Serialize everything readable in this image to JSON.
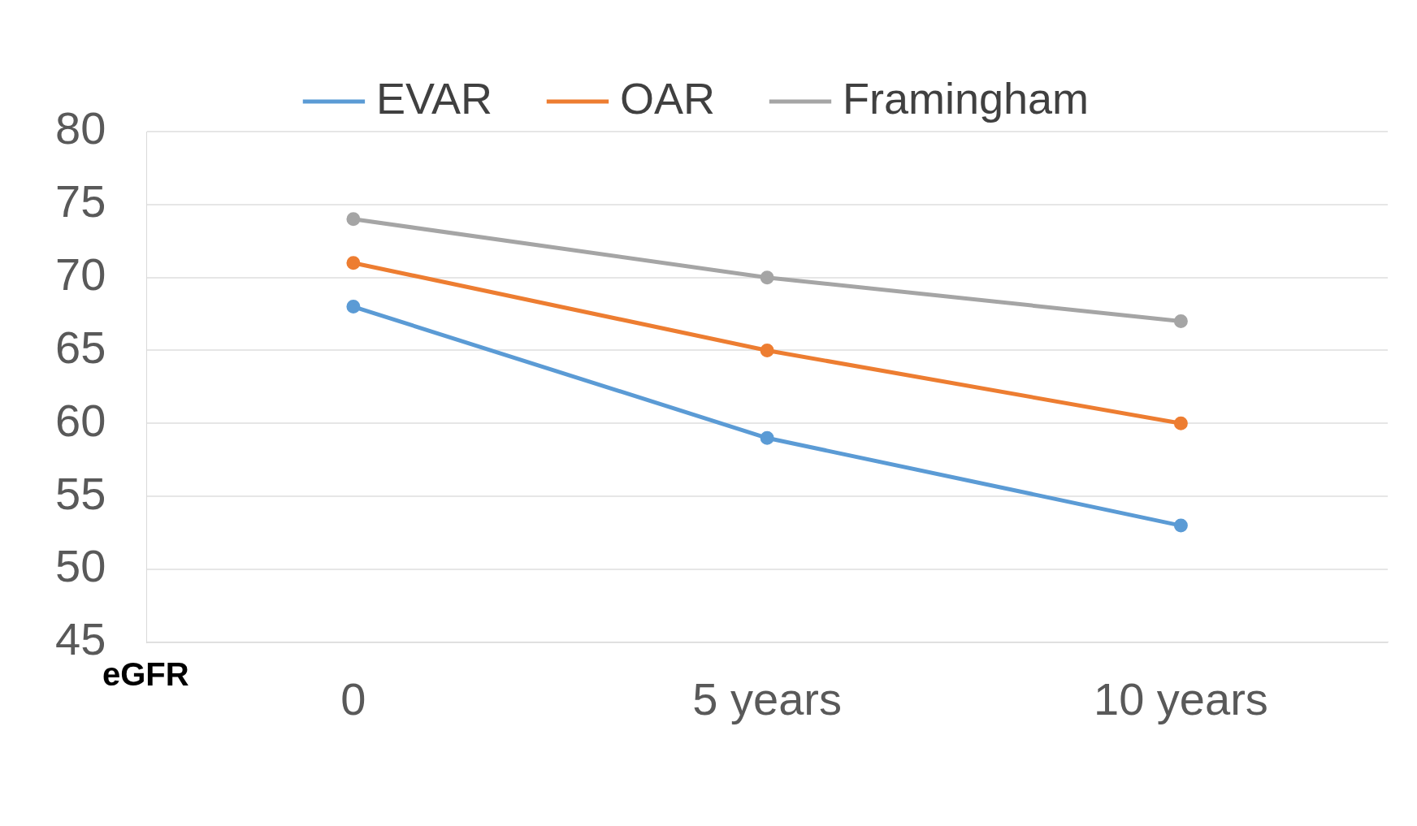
{
  "chart_data": {
    "type": "line",
    "ylabel": "eGFR",
    "categories": [
      "0",
      "5 years",
      "10 years"
    ],
    "series": [
      {
        "name": "EVAR",
        "color": "#5b9bd5",
        "values": [
          68,
          59,
          53
        ]
      },
      {
        "name": "OAR",
        "color": "#ed7d31",
        "values": [
          71,
          65,
          60
        ]
      },
      {
        "name": "Framingham",
        "color": "#a5a5a5",
        "values": [
          74,
          70,
          67
        ]
      }
    ],
    "ylim": [
      45,
      80
    ],
    "yticks": [
      45,
      50,
      55,
      60,
      65,
      70,
      75,
      80
    ],
    "grid": "y",
    "legend": "top",
    "marker": "circle",
    "line_style": "solid"
  }
}
